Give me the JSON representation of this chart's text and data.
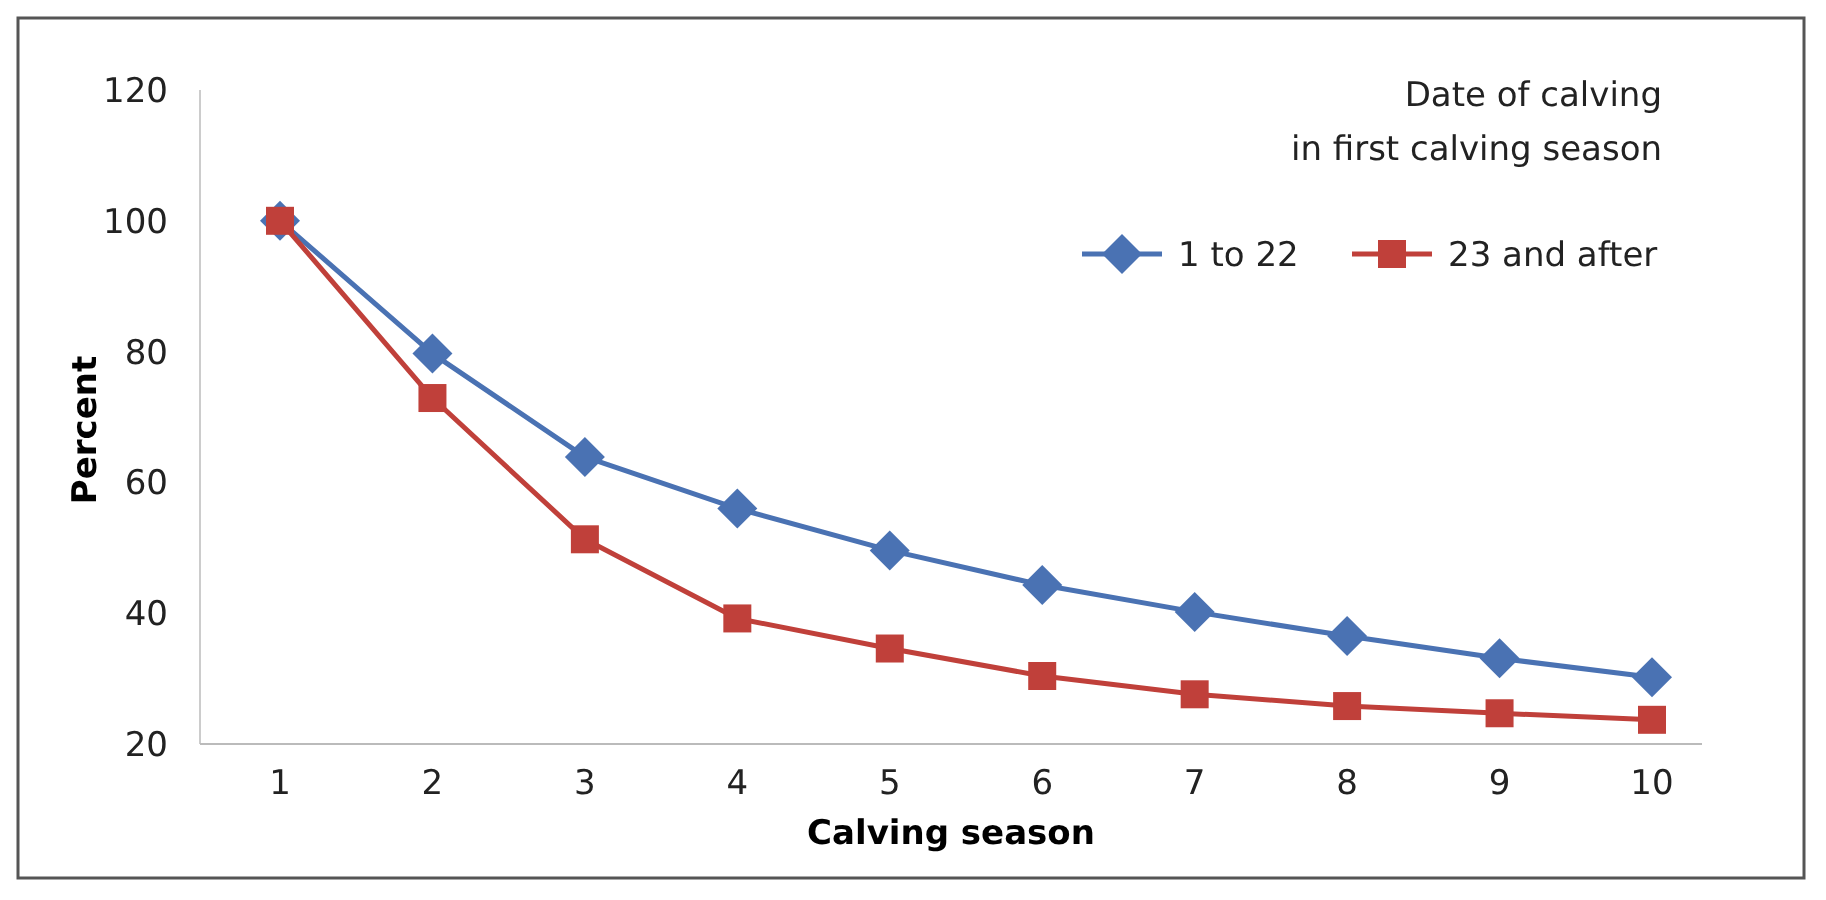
{
  "chart_data": {
    "type": "line",
    "xlabel": "Calving season",
    "ylabel": "Percent",
    "legend_title": "Date of calving\nin first calving season",
    "legend": "top right",
    "grid": false,
    "categories": [
      "1",
      "2",
      "3",
      "4",
      "5",
      "6",
      "7",
      "8",
      "9",
      "10"
    ],
    "ylim": [
      20,
      120
    ],
    "yticks": [
      20,
      40,
      60,
      80,
      100,
      120
    ],
    "series": [
      {
        "name": "1 to 22",
        "color": "#4a72b3",
        "marker": "diamond",
        "values": [
          100,
          79.7,
          63.9,
          56,
          49.6,
          44.3,
          40.2,
          36.5,
          33.1,
          30.2
        ]
      },
      {
        "name": "23 and after",
        "color": "#c0403a",
        "marker": "square",
        "values": [
          100,
          72.9,
          51.3,
          39.2,
          34.6,
          30.4,
          27.6,
          25.8,
          24.7,
          23.7
        ]
      }
    ]
  }
}
